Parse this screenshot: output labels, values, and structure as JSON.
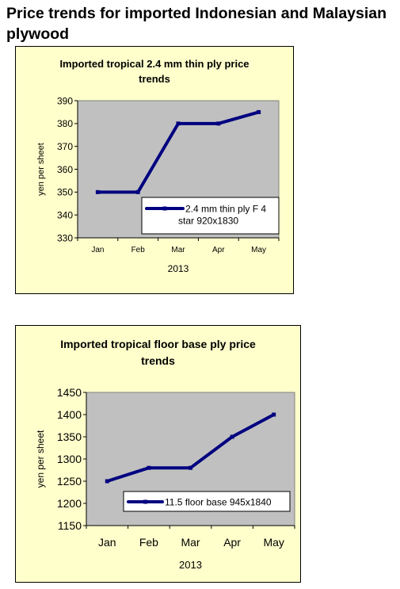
{
  "page": {
    "title_line1": "Price trends for imported Indonesian and Malaysian",
    "title_line2": "plywood"
  },
  "chart_data": [
    {
      "type": "line",
      "title_line1": "Imported tropical 2.4 mm thin ply price",
      "title_line2": "trends",
      "xlabel": "2013",
      "ylabel": "yen per sheet",
      "categories": [
        "Jan",
        "Feb",
        "Mar",
        "Apr",
        "May"
      ],
      "series": [
        {
          "name_line1": "2.4 mm thin ply F 4",
          "name_line2": "star 920x1830",
          "values": [
            350,
            350,
            380,
            380,
            385
          ],
          "color": "#000080"
        }
      ],
      "ylim": [
        330,
        390
      ],
      "yticks": [
        330,
        340,
        350,
        360,
        370,
        380,
        390
      ],
      "plot_background": "#c0c0c0",
      "legend": "bottom-right inside plot",
      "grid": false
    },
    {
      "type": "line",
      "title_line1": "Imported tropical floor base ply price",
      "title_line2": "trends",
      "xlabel": "2013",
      "ylabel": "yen per sheet",
      "categories": [
        "Jan",
        "Feb",
        "Mar",
        "Apr",
        "May"
      ],
      "series": [
        {
          "name_line1": "11.5 floor base 945x1840",
          "values": [
            1250,
            1280,
            1280,
            1350,
            1400
          ],
          "color": "#000080"
        }
      ],
      "ylim": [
        1150,
        1450
      ],
      "yticks": [
        1150,
        1200,
        1250,
        1300,
        1350,
        1400,
        1450
      ],
      "plot_background": "#c0c0c0",
      "legend": "bottom-right inside plot",
      "grid": false
    }
  ]
}
